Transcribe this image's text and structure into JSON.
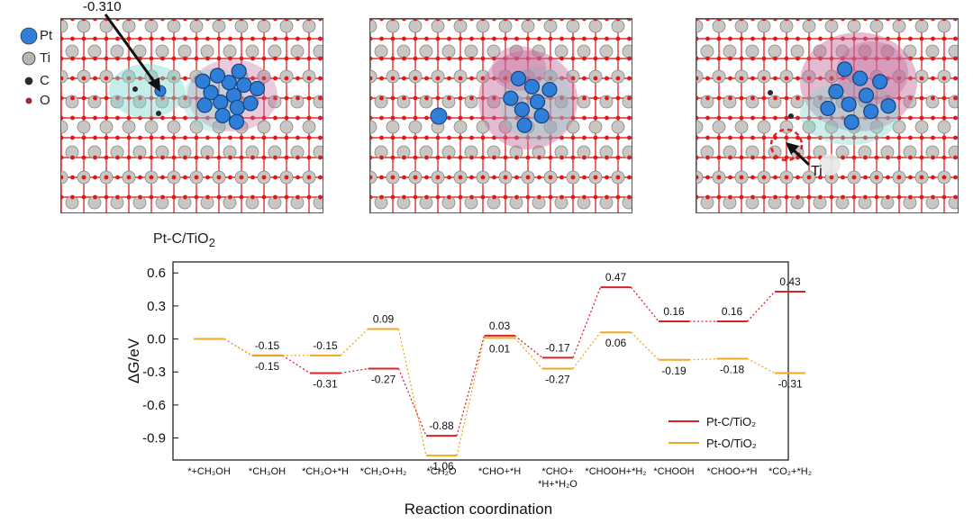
{
  "structure_legend": [
    {
      "symbol": "Pt",
      "color": "#2f7fd8"
    },
    {
      "symbol": "Ti",
      "color": "#b8b6b2"
    },
    {
      "symbol": "C",
      "color": "#2a2a2a"
    },
    {
      "symbol": "O",
      "color": "#d61a1a"
    }
  ],
  "panels": {
    "a_annotation": "-0.310",
    "c_annotation": "Ti"
  },
  "caption": {
    "main": "Pt-C/TiO",
    "sub": "2"
  },
  "chart_data": {
    "type": "line",
    "subtype": "energy_profile",
    "ylabel": "ΔG/eV",
    "xlabel": "Reaction coordination",
    "ylim": [
      -1.1,
      0.7
    ],
    "yticks": [
      "0.6",
      "0.3",
      "0.0",
      "-0.3",
      "-0.6",
      "-0.9"
    ],
    "ytick_values": [
      0.6,
      0.3,
      0.0,
      -0.3,
      -0.6,
      -0.9
    ],
    "categories": [
      [
        "*+CH₃OH"
      ],
      [
        "*CH₃OH"
      ],
      [
        "*CH₃O+*H"
      ],
      [
        "*CH₂O+H₂"
      ],
      [
        "*CH₂O"
      ],
      [
        "*CHO+*H"
      ],
      [
        "*CHO+",
        "*H+*H₂O"
      ],
      [
        "*CHOOH+*H₂"
      ],
      [
        "*CHOOH"
      ],
      [
        "*CHOO+*H"
      ],
      [
        "*CO₂+*H₂"
      ]
    ],
    "series": [
      {
        "name": "Pt-C/TiO₂",
        "color": "#d8232a",
        "values": [
          0,
          -0.15,
          -0.31,
          -0.27,
          -0.88,
          0.03,
          -0.17,
          0.47,
          0.16,
          0.16,
          0.43
        ],
        "labels": [
          "",
          "-0.15",
          "-0.31",
          "-0.27",
          "-0.88",
          "0.03",
          "-0.17",
          "0.47",
          "0.16",
          "0.16",
          "0.43"
        ],
        "label_pos": [
          "",
          "above",
          "below",
          "below",
          "above",
          "above",
          "above",
          "above",
          "above",
          "above",
          "above"
        ]
      },
      {
        "name": "Pt-O/TiO₂",
        "color": "#f0a820",
        "values": [
          0,
          -0.15,
          -0.15,
          0.09,
          -1.06,
          0.01,
          -0.27,
          0.06,
          -0.19,
          -0.18,
          -0.31
        ],
        "labels": [
          "",
          "-0.15",
          "-0.15",
          "0.09",
          "-1.06",
          "0.01",
          "-0.27",
          "0.06",
          "-0.19",
          "-0.18",
          "-0.31"
        ],
        "label_pos": [
          "",
          "below",
          "above",
          "above",
          "below",
          "below",
          "below",
          "below",
          "below",
          "below",
          "below"
        ]
      }
    ],
    "legend": {
      "position": "bottom-right",
      "entries": [
        "Pt-C/TiO₂",
        "Pt-O/TiO₂"
      ]
    }
  }
}
